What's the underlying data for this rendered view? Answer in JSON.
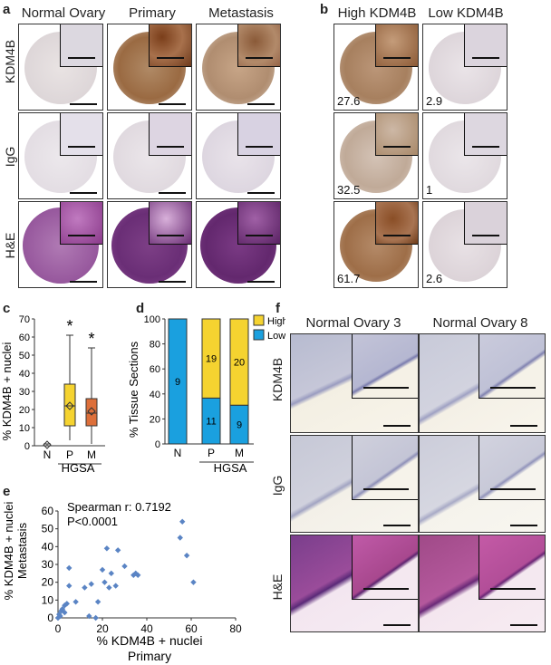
{
  "panels": {
    "a": {
      "label": "a",
      "columns": [
        "Normal Ovary",
        "Primary",
        "Metastasis"
      ],
      "rows": [
        "KDM4B",
        "IgG",
        "H&E"
      ]
    },
    "b": {
      "label": "b",
      "columns": [
        "High KDM4B",
        "Low KDM4B"
      ],
      "values": [
        [
          "27.6",
          "2.9"
        ],
        [
          "32.5",
          "1"
        ],
        [
          "61.7",
          "2.6"
        ]
      ]
    },
    "c": {
      "label": "c"
    },
    "d": {
      "label": "d"
    },
    "e": {
      "label": "e"
    },
    "f": {
      "label": "f",
      "columns": [
        "Normal Ovary 3",
        "Normal Ovary 8"
      ],
      "rows": [
        "KDM4B",
        "IgG",
        "H&E"
      ]
    }
  },
  "colors": {
    "brown_stain": "#9a6a42",
    "light_stain": "#e6e2e6",
    "he_purple": "#8a4a92",
    "high": "#f5d330",
    "low": "#1aa0df",
    "box_p": "#f5d330",
    "box_m": "#dd6f3a",
    "scatter": "#5a84c4"
  },
  "chart_data": [
    {
      "type": "box",
      "id": "c",
      "ylabel": "% KDM4B + nuclei",
      "ylim": [
        0,
        70
      ],
      "yticks": [
        "0",
        "10",
        "20",
        "30",
        "40",
        "50",
        "60",
        "70"
      ],
      "categories": [
        "N",
        "P",
        "M"
      ],
      "group_label": "HGSA",
      "boxes": [
        {
          "name": "N",
          "min": 0,
          "q1": 0,
          "median": 0,
          "q3": 0,
          "max": 1,
          "mean": 0.5
        },
        {
          "name": "P",
          "min": 3,
          "q1": 11,
          "median": 22,
          "q3": 34,
          "max": 61,
          "mean": 22
        },
        {
          "name": "M",
          "min": 1,
          "q1": 11,
          "median": 18,
          "q3": 26,
          "max": 54,
          "mean": 19
        }
      ],
      "significance": [
        {
          "category": "P",
          "mark": "*"
        },
        {
          "category": "M",
          "mark": "*"
        }
      ]
    },
    {
      "type": "bar",
      "id": "d",
      "ylabel": "% Tissue Sections",
      "ylim": [
        0,
        100
      ],
      "yticks": [
        "0",
        "20",
        "40",
        "60",
        "80",
        "100"
      ],
      "categories": [
        "N",
        "P",
        "M"
      ],
      "group_label": "HGSA",
      "series": [
        {
          "name": "Low",
          "values": [
            100,
            36.7,
            31
          ],
          "counts": [
            "9",
            "11",
            "9"
          ]
        },
        {
          "name": "High",
          "values": [
            0,
            63.3,
            69
          ],
          "counts": [
            "",
            "19",
            "20"
          ]
        }
      ],
      "legend": [
        "High",
        "Low"
      ]
    },
    {
      "type": "scatter",
      "id": "e",
      "xlabel": "% KDM4B + nuclei",
      "xlabel2": "Primary",
      "ylabel": "% KDM4B + nuclei",
      "ylabel2": "Metastasis",
      "xlim": [
        0,
        80
      ],
      "ylim": [
        0,
        60
      ],
      "xticks": [
        "0",
        "20",
        "40",
        "60",
        "80"
      ],
      "yticks": [
        "0",
        "10",
        "20",
        "30",
        "40",
        "50",
        "60"
      ],
      "annotation1": "Spearman r: 0.7192",
      "annotation2": "P<0.0001",
      "points": [
        [
          0,
          0
        ],
        [
          0.5,
          2
        ],
        [
          1,
          1
        ],
        [
          1.5,
          4
        ],
        [
          2,
          5
        ],
        [
          3,
          7
        ],
        [
          3,
          3
        ],
        [
          4,
          8
        ],
        [
          5,
          18
        ],
        [
          5,
          28
        ],
        [
          8,
          9
        ],
        [
          12,
          17
        ],
        [
          14,
          1
        ],
        [
          15,
          19
        ],
        [
          17,
          0
        ],
        [
          18,
          9
        ],
        [
          20,
          27
        ],
        [
          21,
          20
        ],
        [
          22,
          39
        ],
        [
          23,
          17
        ],
        [
          24,
          25
        ],
        [
          26,
          18
        ],
        [
          27,
          38
        ],
        [
          30,
          29
        ],
        [
          34,
          24
        ],
        [
          35,
          25
        ],
        [
          36,
          24
        ],
        [
          55,
          45
        ],
        [
          56,
          54
        ],
        [
          58,
          35
        ],
        [
          61,
          20
        ]
      ]
    }
  ]
}
